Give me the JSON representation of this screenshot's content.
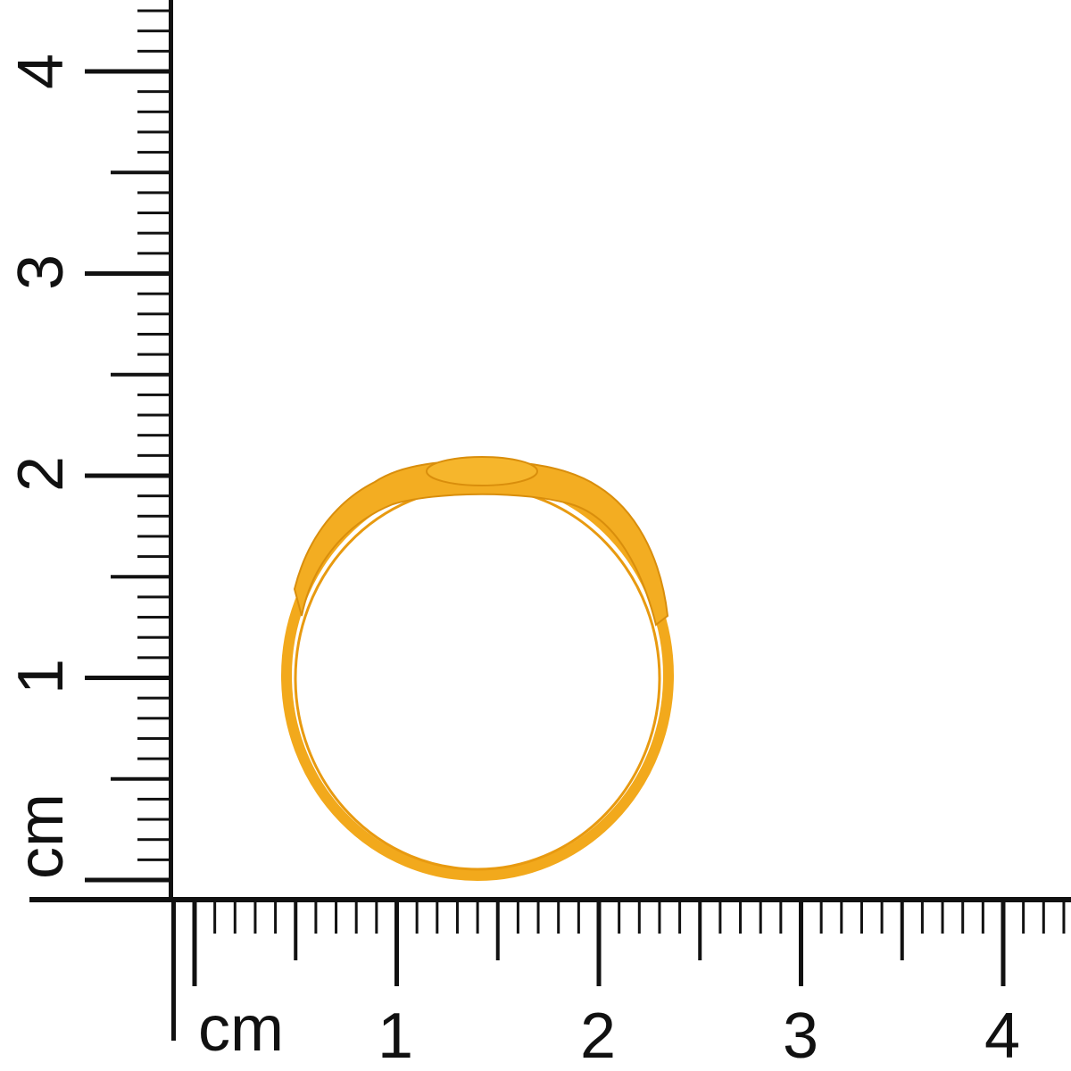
{
  "vertical_ruler": {
    "unit_label": "cm",
    "labels": [
      "1",
      "2",
      "3",
      "4"
    ]
  },
  "horizontal_ruler": {
    "unit_label": "cm",
    "labels": [
      "1",
      "2",
      "3",
      "4"
    ]
  },
  "product": {
    "name": "gold-ring",
    "color": "#f2a91c"
  }
}
